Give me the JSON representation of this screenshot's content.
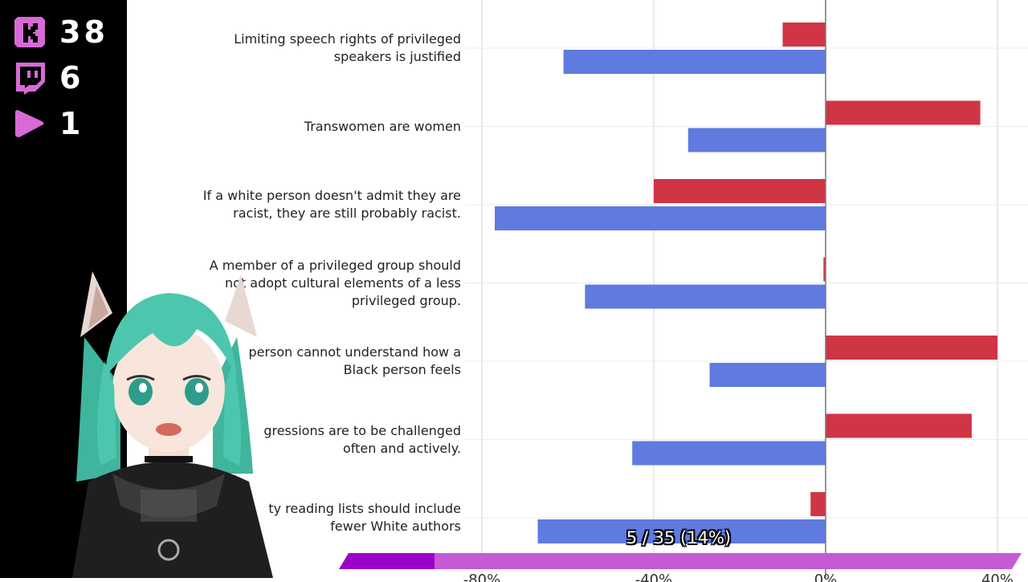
{
  "counters": [
    {
      "icon": "kick-icon",
      "value": "38",
      "color": "#d86ad8"
    },
    {
      "icon": "twitch-icon",
      "value": "6",
      "color": "#d86ad8"
    },
    {
      "icon": "youtube-icon",
      "value": "1",
      "color": "#d86ad8"
    }
  ],
  "chart_data": {
    "type": "bar",
    "orientation": "horizontal",
    "categories": [
      [
        "Limiting speech rights of privileged",
        "speakers is justified"
      ],
      [
        "Transwomen are women"
      ],
      [
        "If a white person doesn't admit they are",
        "racist, they are still probably racist."
      ],
      [
        "A member of a privileged group should",
        "not adopt cultural elements of a less",
        "privileged group."
      ],
      [
        "person cannot understand how a",
        "Black person feels"
      ],
      [
        "gressions are to be challenged",
        "often and actively."
      ],
      [
        "ty reading lists should include",
        "fewer White authors"
      ]
    ],
    "series": [
      {
        "color": "#d03545",
        "values": [
          -10,
          36,
          -40,
          -0.5,
          40,
          34,
          -3.5
        ]
      },
      {
        "color": "#5f7be0",
        "values": [
          -61,
          -32,
          -77,
          -56,
          -27,
          -45,
          -67
        ]
      }
    ],
    "xlim": [
      -80,
      40
    ],
    "x_tick_labels": [
      "-80%",
      "-40%",
      "0%",
      "40%"
    ],
    "grid": true
  },
  "progress": {
    "text": "5 / 35 (14%)",
    "fraction": 0.14
  }
}
